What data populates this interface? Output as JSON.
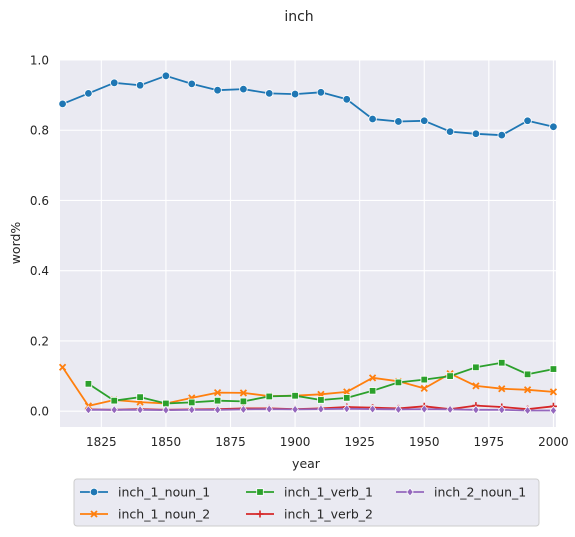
{
  "chart_data": {
    "type": "line",
    "title": "inch",
    "xlabel": "year",
    "ylabel": "word%",
    "xlim": [
      1809,
      2001
    ],
    "ylim": [
      -0.045,
      1.0
    ],
    "xticks": [
      1825,
      1850,
      1875,
      1900,
      1925,
      1950,
      1975,
      2000
    ],
    "xtick_labels": [
      "1825",
      "1850",
      "1875",
      "1900",
      "1925",
      "1950",
      "1975",
      "2000"
    ],
    "yticks": [
      0.0,
      0.2,
      0.4,
      0.6,
      0.8,
      1.0
    ],
    "ytick_labels": [
      "0.0",
      "0.2",
      "0.4",
      "0.6",
      "0.8",
      "1.0"
    ],
    "grid": true,
    "legend_placement": "bottom-center",
    "background": "#eaeaf2",
    "series": [
      {
        "name": "inch_1_noun_1",
        "color": "#1f77b4",
        "marker": "circle",
        "x": [
          1810,
          1820,
          1830,
          1840,
          1850,
          1860,
          1870,
          1880,
          1890,
          1900,
          1910,
          1920,
          1930,
          1940,
          1950,
          1960,
          1970,
          1980,
          1990,
          2000
        ],
        "y": [
          0.875,
          0.905,
          0.935,
          0.928,
          0.955,
          0.932,
          0.914,
          0.917,
          0.905,
          0.903,
          0.908,
          0.888,
          0.832,
          0.825,
          0.827,
          0.796,
          0.79,
          0.786,
          0.827,
          0.81
        ]
      },
      {
        "name": "inch_1_noun_2",
        "color": "#ff7f0e",
        "marker": "x",
        "x": [
          1810,
          1820,
          1830,
          1840,
          1850,
          1860,
          1870,
          1880,
          1890,
          1900,
          1910,
          1920,
          1930,
          1940,
          1950,
          1960,
          1970,
          1980,
          1990,
          2000
        ],
        "y": [
          0.125,
          0.015,
          0.032,
          0.026,
          0.022,
          0.038,
          0.053,
          0.052,
          0.043,
          0.044,
          0.048,
          0.055,
          0.095,
          0.085,
          0.065,
          0.107,
          0.072,
          0.064,
          0.061,
          0.055
        ]
      },
      {
        "name": "inch_1_verb_1",
        "color": "#2ca02c",
        "marker": "square",
        "x": [
          1820,
          1830,
          1840,
          1850,
          1860,
          1870,
          1880,
          1890,
          1900,
          1910,
          1920,
          1930,
          1940,
          1950,
          1960,
          1970,
          1980,
          1990,
          2000
        ],
        "y": [
          0.078,
          0.03,
          0.04,
          0.022,
          0.025,
          0.03,
          0.028,
          0.042,
          0.044,
          0.032,
          0.038,
          0.058,
          0.082,
          0.09,
          0.1,
          0.125,
          0.138,
          0.105,
          0.12
        ]
      },
      {
        "name": "inch_1_verb_2",
        "color": "#d62728",
        "marker": "plus",
        "x": [
          1820,
          1830,
          1840,
          1850,
          1860,
          1870,
          1880,
          1890,
          1900,
          1910,
          1920,
          1930,
          1940,
          1950,
          1960,
          1970,
          1980,
          1990,
          2000
        ],
        "y": [
          0.005,
          0.004,
          0.006,
          0.004,
          0.005,
          0.006,
          0.008,
          0.008,
          0.006,
          0.008,
          0.012,
          0.01,
          0.008,
          0.014,
          0.006,
          0.016,
          0.012,
          0.006,
          0.014
        ]
      },
      {
        "name": "inch_2_noun_1",
        "color": "#9467bd",
        "marker": "diamond",
        "x": [
          1820,
          1830,
          1840,
          1850,
          1860,
          1870,
          1880,
          1890,
          1900,
          1910,
          1920,
          1930,
          1940,
          1950,
          1960,
          1970,
          1980,
          1990,
          2000
        ],
        "y": [
          0.004,
          0.004,
          0.004,
          0.003,
          0.004,
          0.004,
          0.005,
          0.006,
          0.005,
          0.006,
          0.007,
          0.006,
          0.005,
          0.006,
          0.005,
          0.004,
          0.004,
          0.002,
          0.002
        ]
      }
    ]
  }
}
